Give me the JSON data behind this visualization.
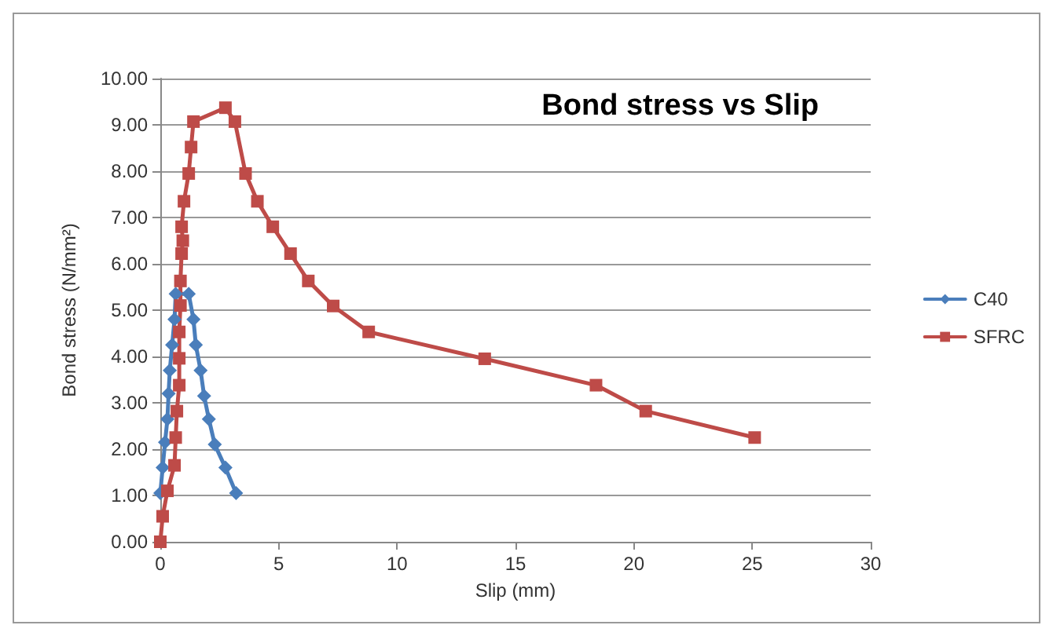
{
  "chart_data": {
    "type": "line",
    "title": "Bond stress vs Slip",
    "xlabel": "Slip (mm)",
    "ylabel": "Bond stress (N/mm²)",
    "xlim": [
      0,
      30
    ],
    "xticks": [
      0,
      5,
      10,
      15,
      20,
      25,
      30
    ],
    "ylim": [
      0,
      10
    ],
    "yticks": [
      {
        "value": 0,
        "label": "0.00"
      },
      {
        "value": 1,
        "label": "1.00"
      },
      {
        "value": 2,
        "label": "2.00"
      },
      {
        "value": 3,
        "label": "3.00"
      },
      {
        "value": 4,
        "label": "4.00"
      },
      {
        "value": 5,
        "label": "5.00"
      },
      {
        "value": 6,
        "label": "6.00"
      },
      {
        "value": 7,
        "label": "7.00"
      },
      {
        "value": 8,
        "label": "8.00"
      },
      {
        "value": 9,
        "label": "9.00"
      },
      {
        "value": 10,
        "label": "10.00"
      }
    ],
    "grid": "y",
    "legend": "right",
    "line_style": "solid",
    "series": [
      {
        "name": "C40",
        "color": "#4a7ebb",
        "marker": "diamond",
        "x": [
          0,
          0.1,
          0.2,
          0.3,
          0.35,
          0.4,
          0.5,
          0.6,
          0.65,
          1.2,
          1.4,
          1.5,
          1.7,
          1.85,
          2.05,
          2.3,
          2.75,
          3.2
        ],
        "values": [
          1.05,
          1.6,
          2.15,
          2.65,
          3.2,
          3.7,
          4.25,
          4.8,
          5.35,
          5.35,
          4.8,
          4.25,
          3.7,
          3.15,
          2.65,
          2.1,
          1.6,
          1.05
        ]
      },
      {
        "name": "SFRC",
        "color": "#be4b48",
        "marker": "square",
        "x": [
          0,
          0.1,
          0.3,
          0.6,
          0.65,
          0.7,
          0.8,
          0.8,
          0.8,
          0.85,
          0.85,
          0.9,
          0.95,
          0.9,
          1.0,
          1.2,
          1.3,
          1.4,
          2.75,
          3.15,
          3.6,
          4.1,
          4.75,
          5.5,
          6.25,
          7.3,
          8.8,
          13.7,
          18.4,
          20.5,
          25.1
        ],
        "values": [
          0,
          0.55,
          1.1,
          1.65,
          2.25,
          2.82,
          3.38,
          3.96,
          4.53,
          5.1,
          5.63,
          6.22,
          6.5,
          6.8,
          7.35,
          7.95,
          8.52,
          9.07,
          9.37,
          9.07,
          7.95,
          7.35,
          6.8,
          6.22,
          5.63,
          5.09,
          4.53,
          3.95,
          3.38,
          2.82,
          2.25
        ]
      }
    ]
  }
}
